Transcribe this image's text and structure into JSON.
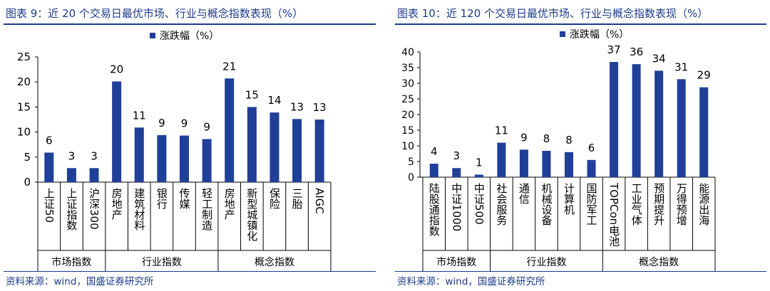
{
  "source_text": "资料来源：wind，国盛证券研究所",
  "accent_color": "#1f3f99",
  "chart_data": [
    {
      "type": "bar",
      "title": "图表 9：近 20 个交易日最优市场、行业与概念指数表现（%）",
      "legend": "涨跌幅（%）",
      "legend_position": "top-center",
      "ylim": [
        0,
        25
      ],
      "yticks": [
        "0",
        "5",
        "10",
        "15",
        "20",
        "25"
      ],
      "categories": [
        "上证50",
        "上证指数",
        "沪深300",
        "房地产",
        "建筑材料",
        "银行",
        "传媒",
        "轻工制造",
        "房地产",
        "新型城镇化",
        "保险",
        "三胎",
        "AIGC"
      ],
      "values": [
        5.9,
        2.8,
        2.8,
        20.1,
        10.9,
        9.4,
        9.3,
        8.6,
        20.7,
        15.0,
        13.9,
        12.6,
        12.5
      ],
      "data_labels": [
        "6",
        "3",
        "3",
        "20",
        "11",
        "9",
        "9",
        "9",
        "21",
        "15",
        "14",
        "13",
        "13"
      ],
      "groups": [
        {
          "label": "市场指数",
          "count": 3
        },
        {
          "label": "行业指数",
          "count": 5
        },
        {
          "label": "概念指数",
          "count": 5
        }
      ]
    },
    {
      "type": "bar",
      "title": "图表 10：近 120 个交易日最优市场、行业与概念指数表现（%）",
      "legend": "涨跌幅（%）",
      "legend_position": "top-center",
      "ylim": [
        0,
        40
      ],
      "yticks": [
        "0",
        "5",
        "10",
        "15",
        "20",
        "25",
        "30",
        "35",
        "40"
      ],
      "categories": [
        "陆股通指数",
        "中证1000",
        "中证500",
        "社会服务",
        "通信",
        "机械设备",
        "计算机",
        "国防军工",
        "TOPCon电池",
        "工业气体",
        "预期提升",
        "万得预增",
        "能源出海"
      ],
      "values": [
        4.3,
        2.9,
        0.8,
        11.0,
        8.8,
        8.4,
        8.0,
        5.5,
        36.8,
        36.1,
        34.0,
        31.3,
        28.7
      ],
      "data_labels": [
        "4",
        "3",
        "1",
        "11",
        "9",
        "8",
        "8",
        "6",
        "37",
        "36",
        "34",
        "31",
        "29"
      ],
      "groups": [
        {
          "label": "市场指数",
          "count": 3
        },
        {
          "label": "行业指数",
          "count": 5
        },
        {
          "label": "概念指数",
          "count": 5
        }
      ]
    }
  ]
}
